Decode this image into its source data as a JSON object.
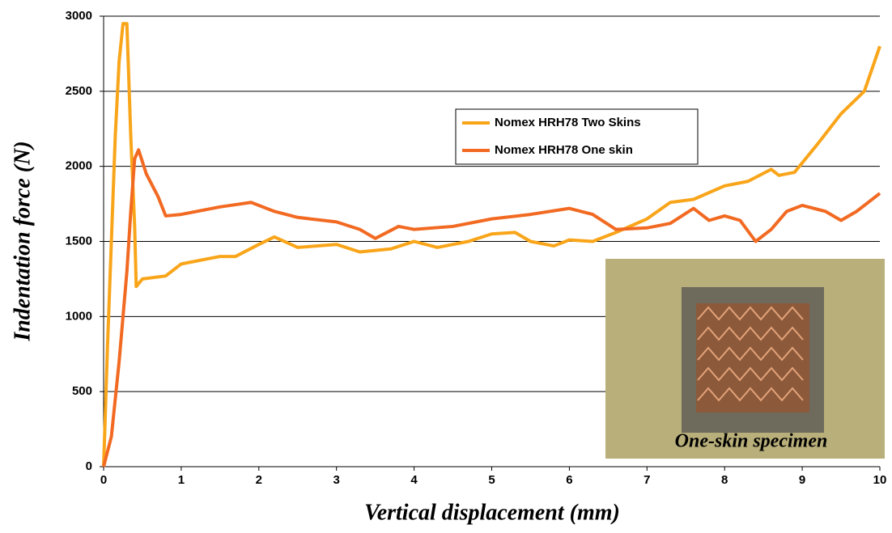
{
  "chart_data": {
    "type": "line",
    "x_label": "Vertical displacement (mm)",
    "y_label": "Indentation force (N)",
    "xlim": [
      0,
      10
    ],
    "ylim": [
      0,
      3000
    ],
    "xticks": [
      0,
      1,
      2,
      3,
      4,
      5,
      6,
      7,
      8,
      9,
      10
    ],
    "yticks": [
      0,
      500,
      1000,
      1500,
      2000,
      2500,
      3000
    ],
    "grid": true,
    "legend": "center",
    "annotation": "One-skin specimen",
    "series": [
      {
        "name": "Nomex HRH78 Two Skins",
        "color": "#F9A51A",
        "x": [
          0,
          0.05,
          0.1,
          0.15,
          0.2,
          0.25,
          0.3,
          0.35,
          0.4,
          0.42,
          0.5,
          0.8,
          1.0,
          1.5,
          1.7,
          2.0,
          2.2,
          2.5,
          3.0,
          3.3,
          3.7,
          4.0,
          4.3,
          4.7,
          5.0,
          5.3,
          5.5,
          5.8,
          6.0,
          6.3,
          6.6,
          7.0,
          7.3,
          7.6,
          8.0,
          8.3,
          8.6,
          8.7,
          8.9,
          9.2,
          9.5,
          9.8,
          10
        ],
        "values": [
          0,
          800,
          1500,
          2200,
          2700,
          2950,
          2950,
          2200,
          1600,
          1200,
          1250,
          1270,
          1350,
          1400,
          1400,
          1480,
          1530,
          1460,
          1480,
          1430,
          1450,
          1500,
          1460,
          1500,
          1550,
          1560,
          1500,
          1470,
          1510,
          1500,
          1560,
          1650,
          1760,
          1780,
          1870,
          1900,
          1980,
          1940,
          1960,
          2150,
          2350,
          2500,
          2800
        ]
      },
      {
        "name": "Nomex HRH78 One skin",
        "color": "#F26A22",
        "x": [
          0,
          0.1,
          0.2,
          0.3,
          0.35,
          0.4,
          0.45,
          0.55,
          0.7,
          0.8,
          1.0,
          1.5,
          1.9,
          2.2,
          2.5,
          3.0,
          3.3,
          3.5,
          3.8,
          4.0,
          4.5,
          5.0,
          5.5,
          6.0,
          6.3,
          6.6,
          7.0,
          7.3,
          7.6,
          7.8,
          8.0,
          8.2,
          8.4,
          8.6,
          8.8,
          9.0,
          9.3,
          9.5,
          9.7,
          10
        ],
        "values": [
          0,
          200,
          700,
          1300,
          1700,
          2050,
          2110,
          1950,
          1800,
          1670,
          1680,
          1730,
          1760,
          1700,
          1660,
          1630,
          1580,
          1520,
          1600,
          1580,
          1600,
          1650,
          1680,
          1720,
          1680,
          1580,
          1590,
          1620,
          1720,
          1640,
          1670,
          1640,
          1500,
          1580,
          1700,
          1740,
          1700,
          1640,
          1700,
          1820
        ]
      }
    ]
  }
}
